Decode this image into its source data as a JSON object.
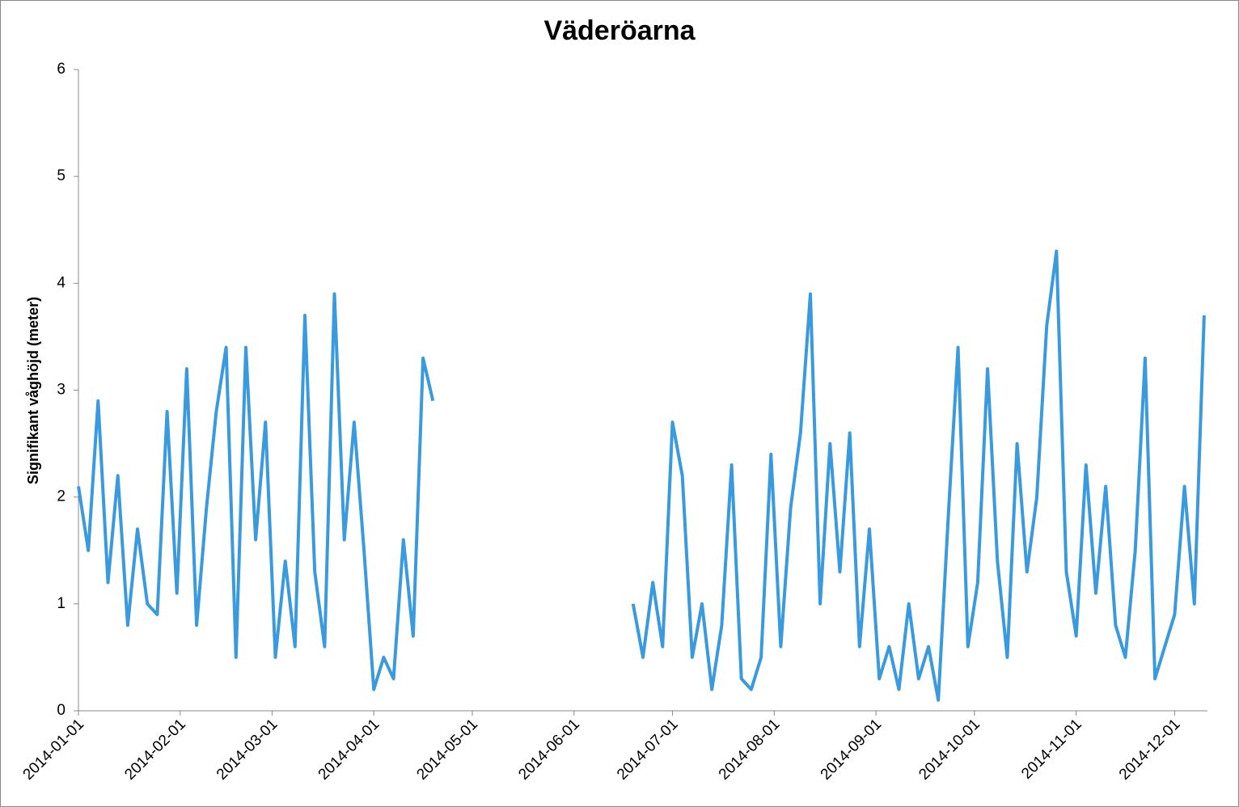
{
  "chart_data": {
    "type": "line",
    "title": "Väderöarna",
    "y_label": "Signifikant våghöjd (meter)",
    "x": [
      "2014-01-01",
      "2014-01-04",
      "2014-01-07",
      "2014-01-10",
      "2014-01-13",
      "2014-01-16",
      "2014-01-19",
      "2014-01-22",
      "2014-01-25",
      "2014-01-28",
      "2014-01-31",
      "2014-02-03",
      "2014-02-06",
      "2014-02-09",
      "2014-02-12",
      "2014-02-15",
      "2014-02-18",
      "2014-02-21",
      "2014-02-24",
      "2014-02-27",
      "2014-03-02",
      "2014-03-05",
      "2014-03-08",
      "2014-03-11",
      "2014-03-14",
      "2014-03-17",
      "2014-03-20",
      "2014-03-23",
      "2014-03-26",
      "2014-03-29",
      "2014-04-01",
      "2014-04-04",
      "2014-04-07",
      "2014-04-10",
      "2014-04-13",
      "2014-04-16",
      "2014-04-19",
      "2014-05-20",
      "2014-06-19",
      "2014-06-22",
      "2014-06-25",
      "2014-06-28",
      "2014-07-01",
      "2014-07-04",
      "2014-07-07",
      "2014-07-10",
      "2014-07-13",
      "2014-07-16",
      "2014-07-19",
      "2014-07-22",
      "2014-07-25",
      "2014-07-28",
      "2014-07-31",
      "2014-08-03",
      "2014-08-06",
      "2014-08-09",
      "2014-08-12",
      "2014-08-15",
      "2014-08-18",
      "2014-08-21",
      "2014-08-24",
      "2014-08-27",
      "2014-08-30",
      "2014-09-02",
      "2014-09-05",
      "2014-09-08",
      "2014-09-11",
      "2014-09-14",
      "2014-09-17",
      "2014-09-20",
      "2014-09-23",
      "2014-09-26",
      "2014-09-29",
      "2014-10-02",
      "2014-10-05",
      "2014-10-08",
      "2014-10-11",
      "2014-10-14",
      "2014-10-17",
      "2014-10-20",
      "2014-10-23",
      "2014-10-26",
      "2014-10-29",
      "2014-11-01",
      "2014-11-04",
      "2014-11-07",
      "2014-11-10",
      "2014-11-13",
      "2014-11-16",
      "2014-11-19",
      "2014-11-22",
      "2014-11-25",
      "2014-11-28",
      "2014-12-01",
      "2014-12-04",
      "2014-12-07",
      "2014-12-10"
    ],
    "series": [
      {
        "name": "Signifikant våghöjd",
        "color": "#3a9ade",
        "values": [
          2.1,
          1.5,
          2.9,
          1.2,
          2.2,
          0.8,
          1.7,
          1.0,
          0.9,
          2.8,
          1.1,
          3.2,
          0.8,
          1.9,
          2.8,
          3.4,
          0.5,
          3.4,
          1.6,
          2.7,
          0.5,
          1.4,
          0.6,
          3.7,
          1.3,
          0.6,
          3.9,
          1.6,
          2.7,
          1.5,
          0.2,
          0.5,
          0.3,
          1.6,
          0.7,
          3.3,
          2.9,
          null,
          1.0,
          0.5,
          1.2,
          0.6,
          2.7,
          2.2,
          0.5,
          1.0,
          0.2,
          0.8,
          2.3,
          0.3,
          0.2,
          0.5,
          2.4,
          0.6,
          1.9,
          2.6,
          3.9,
          1.0,
          2.5,
          1.3,
          2.6,
          0.6,
          1.7,
          0.3,
          0.6,
          0.2,
          1.0,
          0.3,
          0.6,
          0.1,
          1.8,
          3.4,
          0.6,
          1.2,
          3.2,
          1.4,
          0.5,
          2.5,
          1.3,
          2.0,
          3.6,
          4.3,
          1.3,
          0.7,
          2.3,
          1.1,
          2.1,
          0.8,
          0.5,
          1.5,
          3.3,
          0.3,
          0.6,
          0.9,
          2.1,
          1.0,
          3.7
        ]
      }
    ],
    "xlim": [
      "2014-01-01",
      "2014-12-11"
    ],
    "xticks": [
      "2014-01-01",
      "2014-02-01",
      "2014-03-01",
      "2014-04-01",
      "2014-05-01",
      "2014-06-01",
      "2014-07-01",
      "2014-08-01",
      "2014-09-01",
      "2014-10-01",
      "2014-11-01",
      "2014-12-01"
    ],
    "ylim": [
      0,
      6
    ],
    "yticks": [
      0,
      1,
      2,
      3,
      4,
      5,
      6
    ],
    "grid": false
  }
}
